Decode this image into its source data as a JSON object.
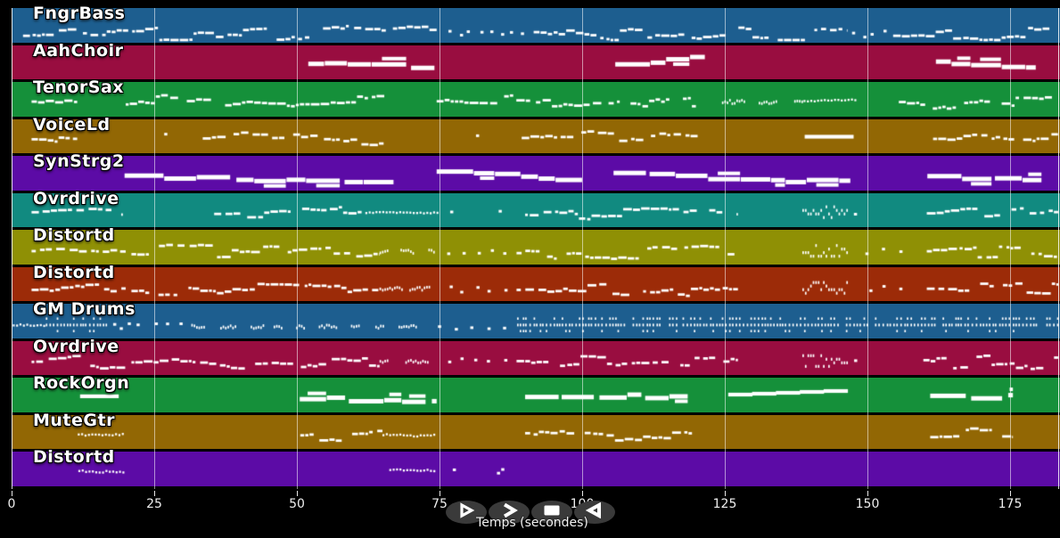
{
  "chart_data": {
    "type": "piano-roll",
    "title": "",
    "xlabel": "Temps (secondes)",
    "x_ticks": [
      "0",
      "25",
      "50",
      "75",
      "100",
      "125",
      "150",
      "175"
    ],
    "x_tick_values": [
      0,
      25,
      50,
      75,
      100,
      125,
      150,
      175
    ],
    "x_range_seconds": [
      0,
      183.5
    ],
    "grid": true,
    "background": "#000000",
    "note_color": "#ffffff",
    "grid_color": "rgba(255,255,255,0.55)",
    "tracks": [
      {
        "name": "FngrBass",
        "color": "#1d5e8f",
        "phrases": [
          [
            2,
            74.5,
            "dashes",
            0.82,
            1
          ],
          [
            76,
            91,
            "dots",
            0.8,
            8
          ],
          [
            91.5,
            146.5,
            "dashes",
            0.82,
            1
          ],
          [
            147,
            154,
            "dots",
            0.8,
            4
          ],
          [
            154.5,
            183,
            "dashes",
            0.82,
            1
          ]
        ]
      },
      {
        "name": "AahChoir",
        "color": "#990d40",
        "phrases": [
          [
            52,
            74.8,
            "bars",
            0.5,
            1
          ],
          [
            105.8,
            121.5,
            "bars",
            0.5,
            1
          ],
          [
            162,
            179.5,
            "bars",
            0.5,
            1
          ]
        ]
      },
      {
        "name": "TenorSax",
        "color": "#15903a",
        "phrases": [
          [
            3.5,
            11.5,
            "dashes",
            0.6,
            0.5
          ],
          [
            20,
            65.5,
            "dashes",
            0.6,
            1
          ],
          [
            74.5,
            120.5,
            "dashes",
            0.6,
            1
          ],
          [
            124.5,
            138.5,
            "clusters",
            0.6,
            1
          ],
          [
            138.8,
            148,
            "run",
            0.55,
            1
          ],
          [
            155.5,
            183,
            "dashes",
            0.6,
            1
          ]
        ]
      },
      {
        "name": "VoiceLd",
        "color": "#926704",
        "phrases": [
          [
            3.5,
            11.5,
            "dashes",
            0.6,
            0.5
          ],
          [
            26.5,
            27.5,
            "dots",
            0.45,
            1
          ],
          [
            33.5,
            65.2,
            "dashes",
            0.6,
            1
          ],
          [
            81,
            82,
            "dots",
            0.5,
            1
          ],
          [
            89.4,
            120.6,
            "dashes",
            0.6,
            1
          ],
          [
            139,
            147.5,
            "longbar",
            0.5,
            1,
            0
          ],
          [
            161.5,
            183.5,
            "dashes",
            0.6,
            1
          ]
        ]
      },
      {
        "name": "SynStrg2",
        "color": "#5c0ba6",
        "phrases": [
          [
            19.8,
            67,
            "bars",
            0.5,
            1
          ],
          [
            74.5,
            100,
            "bars",
            0.5,
            1
          ],
          [
            105.5,
            147,
            "bars",
            0.5,
            1
          ],
          [
            160.5,
            180.5,
            "bars",
            0.5,
            1
          ]
        ]
      },
      {
        "name": "Ovrdrive",
        "color": "#118a80",
        "phrases": [
          [
            3.5,
            19.5,
            "dashes",
            0.62,
            1
          ],
          [
            35.5,
            62,
            "dashes",
            0.62,
            1
          ],
          [
            62,
            74.5,
            "run",
            0.62,
            1
          ],
          [
            76.5,
            77.5,
            "dots",
            0.6,
            1
          ],
          [
            85,
            86,
            "dots",
            0.6,
            1
          ],
          [
            90,
            127.3,
            "dashes",
            0.62,
            1
          ],
          [
            138.6,
            146.4,
            "ticks",
            0.6,
            1
          ],
          [
            147.3,
            148.2,
            "dots",
            0.6,
            1
          ],
          [
            160.4,
            183.5,
            "dashes",
            0.62,
            1
          ]
        ]
      },
      {
        "name": "Distortd",
        "color": "#8f9005",
        "phrases": [
          [
            3.5,
            20,
            "dashes",
            0.68,
            1
          ],
          [
            21,
            64.5,
            "dashes",
            0.68,
            1
          ],
          [
            64.5,
            74,
            "clusters",
            0.66,
            1
          ],
          [
            76,
            88,
            "dots",
            0.66,
            5
          ],
          [
            88.5,
            127.3,
            "dashes",
            0.68,
            1
          ],
          [
            138.6,
            146.4,
            "ticks",
            0.66,
            1
          ],
          [
            149.5,
            158,
            "dots",
            0.66,
            3
          ],
          [
            160.4,
            183.5,
            "dashes",
            0.68,
            1
          ]
        ]
      },
      {
        "name": "Distortd",
        "color": "#9c2b08",
        "phrases": [
          [
            3.5,
            20,
            "dashes",
            0.68,
            1
          ],
          [
            21,
            64.5,
            "dashes",
            0.68,
            1
          ],
          [
            64.5,
            74,
            "clusters",
            0.66,
            1
          ],
          [
            76,
            88,
            "dots",
            0.66,
            5
          ],
          [
            88.5,
            127.3,
            "dashes",
            0.68,
            1
          ],
          [
            138.6,
            146.4,
            "ticks",
            0.66,
            1
          ],
          [
            149.5,
            158,
            "dots",
            0.66,
            3
          ],
          [
            160.4,
            183.5,
            "dashes",
            0.68,
            1
          ]
        ]
      },
      {
        "name": "GM Drums",
        "color": "#1d5e8f",
        "phrases": [
          [
            0.2,
            6,
            "run",
            0.68,
            1
          ],
          [
            6,
            16.6,
            "drumticks",
            0.7,
            1
          ],
          [
            17.5,
            23,
            "dots",
            0.7,
            4
          ],
          [
            24.5,
            31,
            "dots",
            0.7,
            3
          ],
          [
            31.5,
            73,
            "clusters",
            0.7,
            1
          ],
          [
            74,
            88,
            "dots",
            0.7,
            5
          ],
          [
            88.6,
            183.5,
            "drumticks",
            0.7,
            1
          ]
        ]
      },
      {
        "name": "Ovrdrive",
        "color": "#990d40",
        "phrases": [
          [
            3.5,
            20,
            "dashes",
            0.65,
            1
          ],
          [
            21,
            64.5,
            "dashes",
            0.65,
            1
          ],
          [
            64.5,
            74,
            "clusters",
            0.63,
            1
          ],
          [
            76,
            88,
            "dots",
            0.63,
            5
          ],
          [
            88.5,
            127.3,
            "dashes",
            0.65,
            1
          ],
          [
            138.6,
            146.4,
            "ticks",
            0.63,
            1
          ],
          [
            147.5,
            148.5,
            "dots",
            0.63,
            1
          ],
          [
            159.8,
            183.5,
            "dashes",
            0.65,
            1
          ]
        ]
      },
      {
        "name": "RockOrgn",
        "color": "#15903a",
        "phrases": [
          [
            12,
            18.7,
            "longbar",
            0.52,
            1,
            0
          ],
          [
            50.5,
            74.5,
            "bars",
            0.52,
            1
          ],
          [
            90,
            118.5,
            "bars",
            0.52,
            1
          ],
          [
            125.6,
            146.5,
            "longbar",
            0.46,
            1,
            -5
          ],
          [
            161,
            175.5,
            "bars",
            0.5,
            1
          ]
        ]
      },
      {
        "name": "MuteGtr",
        "color": "#926704",
        "phrases": [
          [
            11.6,
            19.8,
            "run",
            0.6,
            1
          ],
          [
            50.6,
            65,
            "dashes",
            0.6,
            1
          ],
          [
            65,
            74.5,
            "run",
            0.6,
            1
          ],
          [
            90,
            120.5,
            "dashes",
            0.6,
            1
          ],
          [
            161,
            175.5,
            "dashes",
            0.6,
            1
          ]
        ]
      },
      {
        "name": "Distortd",
        "color": "#5c0ba6",
        "phrases": [
          [
            11.7,
            19.8,
            "run",
            0.62,
            1
          ],
          [
            66.2,
            74.5,
            "run",
            0.6,
            1
          ],
          [
            77.3,
            78.2,
            "dots",
            0.6,
            1
          ],
          [
            85,
            86.2,
            "dots",
            0.6,
            2
          ]
        ]
      }
    ]
  },
  "controls": {
    "button_color": "#3a3a3a",
    "buttons": [
      {
        "name": "play-button",
        "icon": "play-icon"
      },
      {
        "name": "fast-forward-button",
        "icon": "fast-forward-icon"
      },
      {
        "name": "stop-button",
        "icon": "stop-icon"
      },
      {
        "name": "rewind-button",
        "icon": "rewind-icon"
      }
    ]
  }
}
